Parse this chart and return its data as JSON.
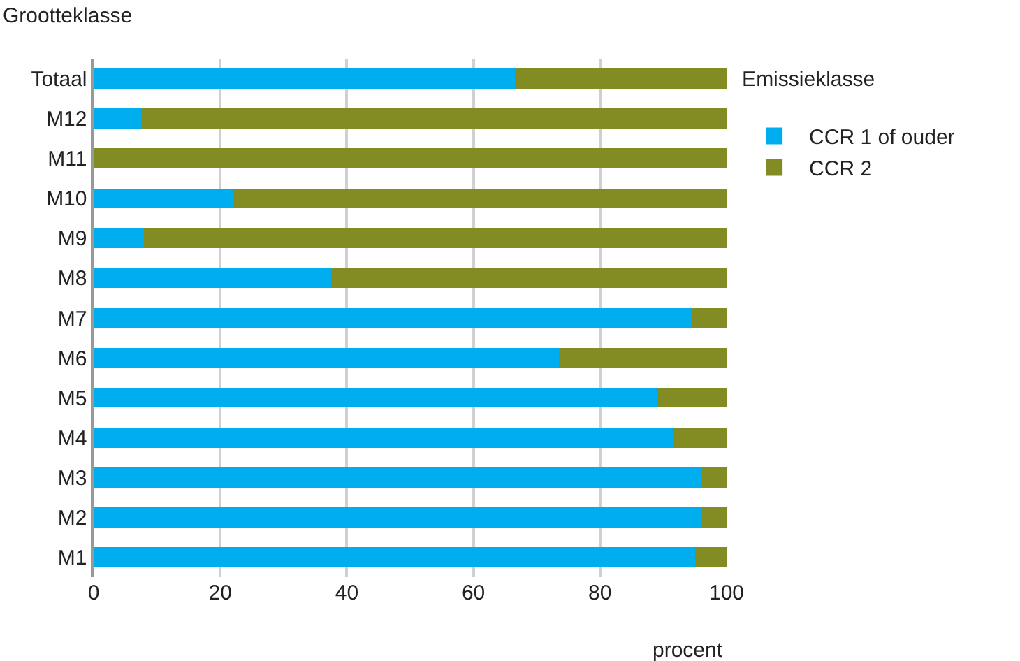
{
  "chart_data": {
    "type": "bar",
    "orientation": "horizontal",
    "stacked": true,
    "ylabel": "Grootteklasse",
    "xlabel": "procent",
    "legend_title": "Emissieklasse",
    "categories": [
      "Totaal",
      "M12",
      "M11",
      "M10",
      "M9",
      "M8",
      "M7",
      "M6",
      "M5",
      "M4",
      "M3",
      "M2",
      "M1"
    ],
    "series": [
      {
        "name": "CCR 1 of ouder",
        "color": "#00aeef",
        "values": [
          66.5,
          7.5,
          0,
          22,
          8,
          37.5,
          94.5,
          73.5,
          89,
          91.5,
          96,
          96,
          95
        ]
      },
      {
        "name": "CCR 2",
        "color": "#838b23",
        "values": [
          33.5,
          92.5,
          100,
          78,
          92,
          62.5,
          5.5,
          26.5,
          11,
          8.5,
          4,
          4,
          5
        ]
      }
    ],
    "xlim": [
      0,
      100
    ],
    "xticks": [
      0,
      20,
      40,
      60,
      80,
      100
    ],
    "grid": "x",
    "legend": "top right"
  }
}
